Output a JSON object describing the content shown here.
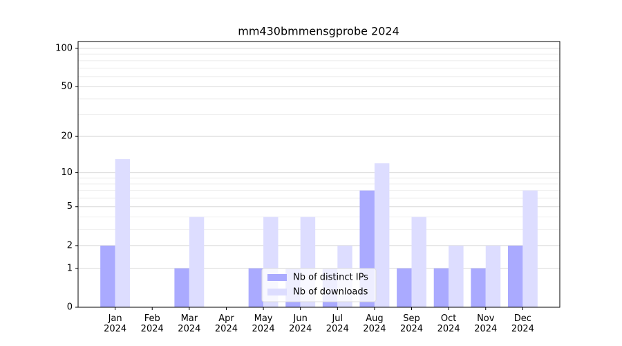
{
  "chart_data": {
    "type": "bar",
    "title": "mm430bmmensgprobe 2024",
    "categories": [
      "Jan\n2024",
      "Feb\n2024",
      "Mar\n2024",
      "Apr\n2024",
      "May\n2024",
      "Jun\n2024",
      "Jul\n2024",
      "Aug\n2024",
      "Sep\n2024",
      "Oct\n2024",
      "Nov\n2024",
      "Dec\n2024"
    ],
    "series": [
      {
        "name": "Nb of distinct IPs",
        "color": "#aaaaff",
        "values": [
          2,
          0,
          1,
          0,
          1,
          1,
          1,
          7,
          1,
          1,
          1,
          2
        ]
      },
      {
        "name": "Nb of downloads",
        "color": "#ddddff",
        "values": [
          13,
          0,
          4,
          0,
          4,
          4,
          2,
          12,
          4,
          2,
          2,
          7
        ]
      }
    ],
    "yscale": "log1p",
    "ylim": [
      0,
      113
    ],
    "yticks": [
      0,
      1,
      2,
      5,
      10,
      20,
      50,
      100
    ],
    "y_minor_ticks": [
      3,
      4,
      6,
      7,
      8,
      9,
      30,
      40,
      60,
      70,
      80,
      90
    ],
    "grid": true,
    "legend_loc": "lower center"
  }
}
